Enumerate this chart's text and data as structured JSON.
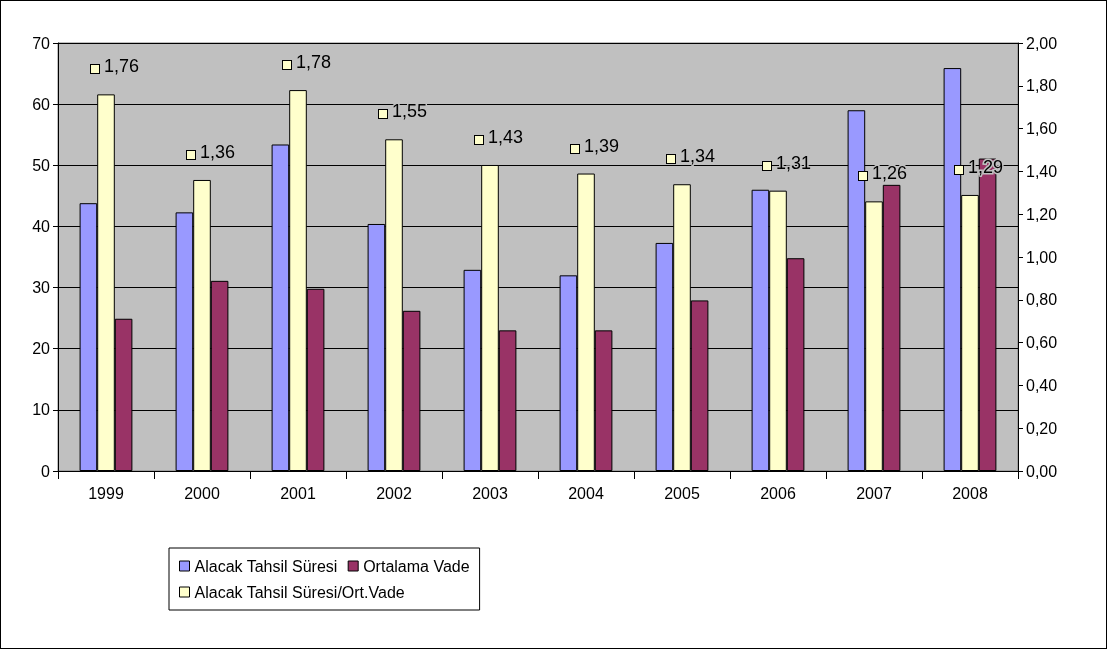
{
  "chart_data": {
    "type": "bar",
    "categories": [
      "1999",
      "2000",
      "2001",
      "2002",
      "2003",
      "2004",
      "2005",
      "2006",
      "2007",
      "2008"
    ],
    "series": [
      {
        "name": "Alacak Tahsil Süresi",
        "color": "#9999ff",
        "values": [
          43.8,
          42.3,
          53.4,
          40.4,
          32.9,
          32.0,
          37.3,
          46.0,
          59.0,
          65.9
        ]
      },
      {
        "name": "Alacak Tahsil Süresi/Ort.Vade",
        "color": "#ffffcc",
        "axis": "y2",
        "values": [
          1.76,
          1.36,
          1.78,
          1.55,
          1.43,
          1.39,
          1.34,
          1.31,
          1.26,
          1.29
        ],
        "value_labels": [
          "1,76",
          "1,36",
          "1,78",
          "1,55",
          "1,43",
          "1,39",
          "1,34",
          "1,31",
          "1,26",
          "1,29"
        ]
      },
      {
        "name": "Ortalama Vade",
        "color": "#993366",
        "values": [
          24.9,
          31.1,
          29.8,
          26.2,
          23.0,
          23.0,
          27.9,
          34.8,
          46.8,
          51.1
        ]
      }
    ],
    "ylim": [
      0,
      70
    ],
    "yticks": [
      0,
      10,
      20,
      30,
      40,
      50,
      60,
      70
    ],
    "y2lim": [
      0,
      2
    ],
    "y2ticks": [
      {
        "value": 0,
        "label": "0,00"
      },
      {
        "value": 0.2,
        "label": "0,20"
      },
      {
        "value": 0.4,
        "label": "0,40"
      },
      {
        "value": 0.6,
        "label": "0,60"
      },
      {
        "value": 0.8,
        "label": "0,80"
      },
      {
        "value": 1,
        "label": "1,00"
      },
      {
        "value": 1.2,
        "label": "1,20"
      },
      {
        "value": 1.4,
        "label": "1,40"
      },
      {
        "value": 1.6,
        "label": "1,60"
      },
      {
        "value": 1.8,
        "label": "1,80"
      },
      {
        "value": 2,
        "label": "2,00"
      }
    ],
    "grid": "y",
    "legend": "bottom"
  }
}
